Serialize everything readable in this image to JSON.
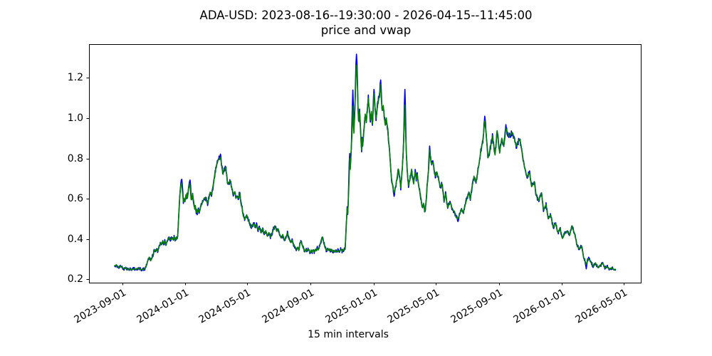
{
  "chart_data": {
    "type": "line",
    "title": "ADA-USD: 2023-08-16--19:30:00 - 2026-04-15--11:45:00",
    "subtitle": "price and vwap",
    "xlabel": "15 min intervals",
    "x_start": "2023-08-16 19:30:00",
    "x_end": "2026-04-15 11:45:00",
    "x_unit": "days since series start (data sampled at 15 min intervals)",
    "x_total_days": 972.7,
    "x_margin_frac": 0.0459,
    "ylim": [
      0.1834,
      1.3679
    ],
    "grid": false,
    "legend": "none",
    "x_ticks": [
      {
        "label": "2023-09-01",
        "day": 15.19
      },
      {
        "label": "2024-01-01",
        "day": 137.19
      },
      {
        "label": "2024-05-01",
        "day": 258.19
      },
      {
        "label": "2024-09-01",
        "day": 381.19
      },
      {
        "label": "2025-01-01",
        "day": 503.19
      },
      {
        "label": "2025-05-01",
        "day": 623.19
      },
      {
        "label": "2025-09-01",
        "day": 746.19
      },
      {
        "label": "2026-01-01",
        "day": 868.19
      },
      {
        "label": "2026-05-01",
        "day": 988.19
      }
    ],
    "y_ticks": [
      {
        "label": "0.2",
        "value": 0.2
      },
      {
        "label": "0.4",
        "value": 0.4
      },
      {
        "label": "0.6",
        "value": 0.6
      },
      {
        "label": "0.8",
        "value": 0.8
      },
      {
        "label": "1.0",
        "value": 1.0
      },
      {
        "label": "1.2",
        "value": 1.2
      }
    ],
    "series": [
      {
        "name": "price",
        "color": "#0000ee",
        "line_width": 1.6,
        "noise_amp": [
          0.01,
          0.022
        ],
        "noise_seed": 7.3
      },
      {
        "name": "vwap",
        "color": "#008000",
        "line_width": 1.6,
        "noise_amp": [
          0.003,
          0.006
        ],
        "noise_seed": 2.1
      }
    ],
    "anchors": [
      [
        0,
        0.265
      ],
      [
        4,
        0.272
      ],
      [
        8,
        0.258
      ],
      [
        12,
        0.266
      ],
      [
        15,
        0.26
      ],
      [
        18,
        0.252
      ],
      [
        22,
        0.257
      ],
      [
        26,
        0.247
      ],
      [
        30,
        0.252
      ],
      [
        34,
        0.246
      ],
      [
        38,
        0.253
      ],
      [
        42,
        0.248
      ],
      [
        46,
        0.256
      ],
      [
        50,
        0.251
      ],
      [
        54,
        0.246
      ],
      [
        57,
        0.252
      ],
      [
        58,
        0.248
      ],
      [
        60,
        0.255
      ],
      [
        62,
        0.27
      ],
      [
        64,
        0.285
      ],
      [
        66,
        0.3
      ],
      [
        68,
        0.31
      ],
      [
        70,
        0.295
      ],
      [
        72,
        0.3
      ],
      [
        74,
        0.315
      ],
      [
        76,
        0.33
      ],
      [
        78,
        0.345
      ],
      [
        80,
        0.338
      ],
      [
        82,
        0.352
      ],
      [
        84,
        0.34
      ],
      [
        86,
        0.355
      ],
      [
        88,
        0.368
      ],
      [
        90,
        0.382
      ],
      [
        92,
        0.372
      ],
      [
        94,
        0.39
      ],
      [
        96,
        0.378
      ],
      [
        98,
        0.39
      ],
      [
        100,
        0.37
      ],
      [
        102,
        0.388
      ],
      [
        104,
        0.398
      ],
      [
        106,
        0.408
      ],
      [
        108,
        0.395
      ],
      [
        110,
        0.4
      ],
      [
        112,
        0.41
      ],
      [
        114,
        0.398
      ],
      [
        116,
        0.41
      ],
      [
        118,
        0.395
      ],
      [
        120,
        0.405
      ],
      [
        122,
        0.4
      ],
      [
        123,
        0.42
      ],
      [
        124,
        0.46
      ],
      [
        125,
        0.52
      ],
      [
        126,
        0.565
      ],
      [
        127,
        0.61
      ],
      [
        128,
        0.648
      ],
      [
        129,
        0.665
      ],
      [
        130,
        0.678
      ],
      [
        131,
        0.662
      ],
      [
        132,
        0.64
      ],
      [
        133,
        0.61
      ],
      [
        134,
        0.585
      ],
      [
        135,
        0.6
      ],
      [
        136,
        0.592
      ],
      [
        137,
        0.585
      ],
      [
        138,
        0.6
      ],
      [
        139,
        0.617
      ],
      [
        140,
        0.6
      ],
      [
        141,
        0.625
      ],
      [
        142,
        0.605
      ],
      [
        143,
        0.63
      ],
      [
        144,
        0.648
      ],
      [
        145,
        0.66
      ],
      [
        146,
        0.673
      ],
      [
        147,
        0.66
      ],
      [
        148,
        0.63
      ],
      [
        149,
        0.6
      ],
      [
        150,
        0.596
      ],
      [
        151,
        0.61
      ],
      [
        152,
        0.625
      ],
      [
        153,
        0.6
      ],
      [
        154,
        0.585
      ],
      [
        155,
        0.57
      ],
      [
        156,
        0.55
      ],
      [
        157,
        0.565
      ],
      [
        158,
        0.55
      ],
      [
        159,
        0.53
      ],
      [
        160,
        0.545
      ],
      [
        161,
        0.53
      ],
      [
        163,
        0.55
      ],
      [
        165,
        0.532
      ],
      [
        167,
        0.554
      ],
      [
        169,
        0.57
      ],
      [
        172,
        0.589
      ],
      [
        174,
        0.6
      ],
      [
        177,
        0.606
      ],
      [
        179,
        0.59
      ],
      [
        181,
        0.577
      ],
      [
        183,
        0.6
      ],
      [
        186,
        0.63
      ],
      [
        188,
        0.615
      ],
      [
        190,
        0.64
      ],
      [
        193,
        0.683
      ],
      [
        195,
        0.72
      ],
      [
        197,
        0.754
      ],
      [
        200,
        0.78
      ],
      [
        202,
        0.795
      ],
      [
        204,
        0.8
      ],
      [
        206,
        0.806
      ],
      [
        208,
        0.77
      ],
      [
        211,
        0.724
      ],
      [
        213,
        0.74
      ],
      [
        216,
        0.76
      ],
      [
        218,
        0.72
      ],
      [
        220,
        0.672
      ],
      [
        222,
        0.68
      ],
      [
        225,
        0.689
      ],
      [
        227,
        0.66
      ],
      [
        229,
        0.648
      ],
      [
        231,
        0.62
      ],
      [
        234,
        0.636
      ],
      [
        236,
        0.6
      ],
      [
        239,
        0.613
      ],
      [
        241,
        0.6
      ],
      [
        243,
        0.63
      ],
      [
        245,
        0.6
      ],
      [
        248,
        0.554
      ],
      [
        250,
        0.52
      ],
      [
        253,
        0.495
      ],
      [
        255,
        0.51
      ],
      [
        257,
        0.518
      ],
      [
        259,
        0.5
      ],
      [
        262,
        0.483
      ],
      [
        264,
        0.47
      ],
      [
        266,
        0.459
      ],
      [
        268,
        0.47
      ],
      [
        271,
        0.477
      ],
      [
        273,
        0.46
      ],
      [
        276,
        0.472
      ],
      [
        279,
        0.445
      ],
      [
        282,
        0.458
      ],
      [
        285,
        0.432
      ],
      [
        288,
        0.45
      ],
      [
        291,
        0.425
      ],
      [
        294,
        0.44
      ],
      [
        297,
        0.415
      ],
      [
        300,
        0.432
      ],
      [
        303,
        0.41
      ],
      [
        306,
        0.428
      ],
      [
        309,
        0.45
      ],
      [
        312,
        0.465
      ],
      [
        315,
        0.44
      ],
      [
        318,
        0.452
      ],
      [
        321,
        0.42
      ],
      [
        324,
        0.405
      ],
      [
        327,
        0.42
      ],
      [
        330,
        0.395
      ],
      [
        333,
        0.41
      ],
      [
        336,
        0.43
      ],
      [
        339,
        0.4
      ],
      [
        342,
        0.382
      ],
      [
        345,
        0.395
      ],
      [
        348,
        0.372
      ],
      [
        351,
        0.36
      ],
      [
        354,
        0.348
      ],
      [
        356,
        0.36
      ],
      [
        358,
        0.345
      ],
      [
        360,
        0.372
      ],
      [
        362,
        0.39
      ],
      [
        364,
        0.378
      ],
      [
        366,
        0.36
      ],
      [
        368,
        0.348
      ],
      [
        370,
        0.338
      ],
      [
        372,
        0.35
      ],
      [
        374,
        0.34
      ],
      [
        376,
        0.353
      ],
      [
        378,
        0.342
      ],
      [
        380,
        0.33
      ],
      [
        382,
        0.344
      ],
      [
        384,
        0.334
      ],
      [
        386,
        0.346
      ],
      [
        388,
        0.336
      ],
      [
        390,
        0.35
      ],
      [
        392,
        0.34
      ],
      [
        394,
        0.355
      ],
      [
        396,
        0.345
      ],
      [
        398,
        0.362
      ],
      [
        400,
        0.378
      ],
      [
        402,
        0.398
      ],
      [
        404,
        0.408
      ],
      [
        406,
        0.388
      ],
      [
        408,
        0.368
      ],
      [
        410,
        0.352
      ],
      [
        412,
        0.342
      ],
      [
        414,
        0.354
      ],
      [
        416,
        0.344
      ],
      [
        418,
        0.35
      ],
      [
        420,
        0.34
      ],
      [
        422,
        0.348
      ],
      [
        424,
        0.336
      ],
      [
        426,
        0.344
      ],
      [
        428,
        0.334
      ],
      [
        430,
        0.342
      ],
      [
        432,
        0.336
      ],
      [
        434,
        0.344
      ],
      [
        436,
        0.338
      ],
      [
        438,
        0.345
      ],
      [
        440,
        0.35
      ],
      [
        442,
        0.34
      ],
      [
        444,
        0.348
      ],
      [
        446,
        0.344
      ],
      [
        448,
        0.352
      ],
      [
        449,
        0.4
      ],
      [
        450,
        0.455
      ],
      [
        451,
        0.51
      ],
      [
        452,
        0.555
      ],
      [
        453,
        0.525
      ],
      [
        454,
        0.585
      ],
      [
        455,
        0.645
      ],
      [
        456,
        0.72
      ],
      [
        457,
        0.8
      ],
      [
        458,
        0.745
      ],
      [
        459,
        0.79
      ],
      [
        460,
        0.86
      ],
      [
        461,
        0.9
      ],
      [
        462,
        0.955
      ],
      [
        463,
        1.06
      ],
      [
        464,
        0.985
      ],
      [
        465,
        0.925
      ],
      [
        466,
        0.985
      ],
      [
        467,
        1.06
      ],
      [
        468,
        1.13
      ],
      [
        469,
        1.21
      ],
      [
        470,
        1.268
      ],
      [
        471,
        1.23
      ],
      [
        472,
        1.15
      ],
      [
        473,
        1.05
      ],
      [
        474,
        1.0
      ],
      [
        475,
        0.985
      ],
      [
        476,
        1.03
      ],
      [
        477,
        0.99
      ],
      [
        478,
        0.93
      ],
      [
        479,
        0.875
      ],
      [
        480,
        0.845
      ],
      [
        481,
        0.9
      ],
      [
        482,
        0.86
      ],
      [
        483,
        0.9
      ],
      [
        485,
        0.96
      ],
      [
        487,
        1.02
      ],
      [
        489,
        0.98
      ],
      [
        491,
        1.04
      ],
      [
        493,
        1.1
      ],
      [
        495,
        1.04
      ],
      [
        497,
        0.99
      ],
      [
        499,
        1.03
      ],
      [
        501,
        0.97
      ],
      [
        503,
        1.07
      ],
      [
        504,
        1.12
      ],
      [
        506,
        1.06
      ],
      [
        508,
        1.0
      ],
      [
        510,
        1.045
      ],
      [
        512,
        1.08
      ],
      [
        514,
        1.11
      ],
      [
        516,
        1.14
      ],
      [
        517,
        1.165
      ],
      [
        518,
        1.1
      ],
      [
        520,
        1.04
      ],
      [
        522,
        1.065
      ],
      [
        524,
        1.005
      ],
      [
        526,
        0.965
      ],
      [
        528,
        1.0
      ],
      [
        530,
        0.955
      ],
      [
        532,
        0.9
      ],
      [
        534,
        0.845
      ],
      [
        536,
        0.77
      ],
      [
        538,
        0.7
      ],
      [
        541,
        0.655
      ],
      [
        543,
        0.627
      ],
      [
        546,
        0.66
      ],
      [
        549,
        0.71
      ],
      [
        551,
        0.745
      ],
      [
        554,
        0.7
      ],
      [
        556,
        0.655
      ],
      [
        559,
        0.75
      ],
      [
        561,
        0.85
      ],
      [
        563,
        1.0
      ],
      [
        564,
        1.065
      ],
      [
        565,
        0.95
      ],
      [
        567,
        0.82
      ],
      [
        569,
        0.72
      ],
      [
        571,
        0.665
      ],
      [
        573,
        0.69
      ],
      [
        575,
        0.71
      ],
      [
        577,
        0.745
      ],
      [
        579,
        0.7
      ],
      [
        581,
        0.675
      ],
      [
        584,
        0.735
      ],
      [
        586,
        0.7
      ],
      [
        588,
        0.72
      ],
      [
        591,
        0.66
      ],
      [
        594,
        0.62
      ],
      [
        596,
        0.585
      ],
      [
        598,
        0.555
      ],
      [
        600,
        0.575
      ],
      [
        603,
        0.536
      ],
      [
        605,
        0.58
      ],
      [
        607,
        0.66
      ],
      [
        609,
        0.72
      ],
      [
        611,
        0.78
      ],
      [
        612,
        0.84
      ],
      [
        614,
        0.8
      ],
      [
        616,
        0.77
      ],
      [
        619,
        0.78
      ],
      [
        621,
        0.74
      ],
      [
        623,
        0.71
      ],
      [
        626,
        0.735
      ],
      [
        629,
        0.7
      ],
      [
        633,
        0.655
      ],
      [
        636,
        0.675
      ],
      [
        640,
        0.59
      ],
      [
        643,
        0.625
      ],
      [
        647,
        0.555
      ],
      [
        650,
        0.58
      ],
      [
        653,
        0.575
      ],
      [
        656,
        0.55
      ],
      [
        660,
        0.537
      ],
      [
        663,
        0.51
      ],
      [
        667,
        0.5
      ],
      [
        670,
        0.52
      ],
      [
        674,
        0.55
      ],
      [
        677,
        0.53
      ],
      [
        681,
        0.57
      ],
      [
        684,
        0.6
      ],
      [
        688,
        0.63
      ],
      [
        691,
        0.6
      ],
      [
        695,
        0.67
      ],
      [
        698,
        0.71
      ],
      [
        702,
        0.685
      ],
      [
        705,
        0.73
      ],
      [
        709,
        0.79
      ],
      [
        712,
        0.85
      ],
      [
        716,
        0.9
      ],
      [
        719,
        0.99
      ],
      [
        722,
        0.92
      ],
      [
        725,
        0.8
      ],
      [
        729,
        0.84
      ],
      [
        734,
        0.91
      ],
      [
        739,
        0.82
      ],
      [
        743,
        0.935
      ],
      [
        748,
        0.83
      ],
      [
        752,
        0.9
      ],
      [
        756,
        0.86
      ],
      [
        760,
        0.95
      ],
      [
        766,
        0.91
      ],
      [
        773,
        0.93
      ],
      [
        780,
        0.86
      ],
      [
        787,
        0.9
      ],
      [
        792,
        0.82
      ],
      [
        796,
        0.76
      ],
      [
        801,
        0.71
      ],
      [
        806,
        0.73
      ],
      [
        810,
        0.66
      ],
      [
        815,
        0.685
      ],
      [
        819,
        0.615
      ],
      [
        824,
        0.59
      ],
      [
        829,
        0.63
      ],
      [
        833,
        0.545
      ],
      [
        838,
        0.57
      ],
      [
        842,
        0.5
      ],
      [
        847,
        0.52
      ],
      [
        852,
        0.455
      ],
      [
        856,
        0.48
      ],
      [
        861,
        0.43
      ],
      [
        865,
        0.455
      ],
      [
        870,
        0.405
      ],
      [
        875,
        0.43
      ],
      [
        879,
        0.44
      ],
      [
        884,
        0.42
      ],
      [
        888,
        0.465
      ],
      [
        893,
        0.43
      ],
      [
        898,
        0.37
      ],
      [
        902,
        0.35
      ],
      [
        907,
        0.365
      ],
      [
        911,
        0.31
      ],
      [
        916,
        0.275
      ],
      [
        920,
        0.305
      ],
      [
        925,
        0.285
      ],
      [
        930,
        0.263
      ],
      [
        934,
        0.28
      ],
      [
        939,
        0.258
      ],
      [
        943,
        0.268
      ],
      [
        948,
        0.28
      ],
      [
        952,
        0.257
      ],
      [
        957,
        0.263
      ],
      [
        961,
        0.252
      ],
      [
        966,
        0.257
      ],
      [
        970,
        0.246
      ],
      [
        973,
        0.252
      ]
    ],
    "price_spikes": [
      [
        131,
        0.697
      ],
      [
        147,
        0.693
      ],
      [
        206,
        0.822
      ],
      [
        457,
        0.825
      ],
      [
        463,
        1.14
      ],
      [
        470,
        1.318
      ],
      [
        504,
        1.143
      ],
      [
        517,
        1.19
      ],
      [
        543,
        0.612
      ],
      [
        564,
        1.143
      ],
      [
        612,
        0.862
      ],
      [
        667,
        0.487
      ],
      [
        719,
        1.01
      ],
      [
        760,
        0.968
      ],
      [
        916,
        0.252
      ]
    ]
  }
}
